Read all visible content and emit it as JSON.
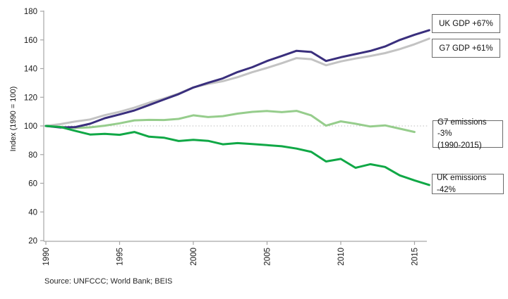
{
  "axis": {
    "y_title": "Index (1990 = 100)"
  },
  "labels": {
    "uk_gdp": "UK GDP +67%",
    "g7_gdp": "G7 GDP +61%",
    "g7_emissions_line1": "G7 emissions -3%",
    "g7_emissions_line2": "(1990-2015)",
    "uk_emissions": "UK emissions -42%"
  },
  "source": "Source: UNFCCC; World Bank; BEIS",
  "chart_data": {
    "type": "line",
    "title": "",
    "xlabel": "",
    "ylabel": "Index (1990 = 100)",
    "xlim": [
      1990,
      2016
    ],
    "ylim": [
      20,
      180
    ],
    "x_ticks": [
      1990,
      1995,
      2000,
      2005,
      2010,
      2015
    ],
    "y_ticks": [
      180,
      160,
      140,
      120,
      100,
      80,
      60,
      40,
      20
    ],
    "grid": false,
    "reference_line_y": 100,
    "legend_position": "right callout boxes",
    "x": [
      1990,
      1991,
      1992,
      1993,
      1994,
      1995,
      1996,
      1997,
      1998,
      1999,
      2000,
      2001,
      2002,
      2003,
      2004,
      2005,
      2006,
      2007,
      2008,
      2009,
      2010,
      2011,
      2012,
      2013,
      2014,
      2015,
      2016
    ],
    "series": [
      {
        "name": "G7 GDP",
        "label": "G7 GDP +61%",
        "color": "#c3c3c3",
        "values": [
          100,
          101.3,
          103.1,
          104.5,
          107.5,
          109.8,
          112.7,
          116.2,
          119.1,
          122.6,
          126.9,
          129.3,
          131.2,
          134.0,
          137.5,
          140.5,
          143.8,
          147.3,
          146.6,
          142.3,
          145.0,
          147.0,
          148.8,
          150.8,
          153.6,
          157.0,
          160.9
        ]
      },
      {
        "name": "G7 emissions",
        "label": "G7 emissions -3% (1990-2015)",
        "color": "#96cd8c",
        "values": [
          100,
          99.3,
          98.6,
          99.0,
          100.2,
          101.8,
          103.9,
          104.2,
          104.1,
          104.9,
          107.4,
          106.2,
          106.8,
          108.6,
          109.8,
          110.4,
          109.6,
          110.5,
          107.3,
          100.2,
          103.2,
          101.5,
          99.6,
          100.4,
          98.1,
          95.8,
          null
        ]
      },
      {
        "name": "UK GDP",
        "label": "UK GDP +67%",
        "color": "#3a2f7d",
        "values": [
          100,
          98.9,
          99.2,
          101.5,
          105.4,
          108.0,
          110.8,
          114.6,
          118.4,
          122.2,
          126.8,
          130.1,
          133.2,
          137.6,
          141.0,
          145.3,
          148.8,
          152.4,
          151.6,
          145.3,
          147.9,
          150.1,
          152.3,
          155.4,
          160.0,
          163.6,
          166.8
        ]
      },
      {
        "name": "UK emissions",
        "label": "UK emissions -42%",
        "color": "#10a846",
        "values": [
          100,
          99.2,
          96.5,
          94.0,
          94.5,
          93.8,
          95.8,
          92.5,
          91.8,
          89.5,
          90.3,
          89.6,
          87.2,
          88.0,
          87.4,
          86.6,
          85.8,
          84.2,
          81.9,
          75.2,
          77.0,
          70.8,
          73.3,
          71.4,
          65.5,
          62.0,
          58.8
        ]
      }
    ]
  }
}
